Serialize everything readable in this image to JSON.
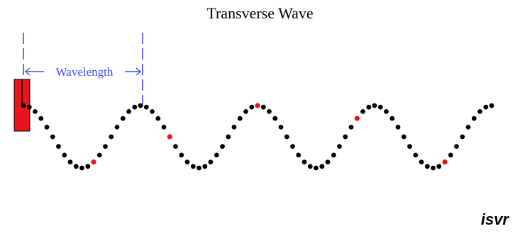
{
  "title": "Transverse Wave",
  "wavelength_label": "Wavelength",
  "logo_text": "isvr",
  "colors": {
    "particle": "#000000",
    "highlighted_particle": "#e8141c",
    "source": "#e8141c",
    "measure": "#4a4aff"
  },
  "wave": {
    "particles_per_wavelength": 20,
    "wavelengths_shown": 4,
    "highlighted_every_n": 20
  }
}
